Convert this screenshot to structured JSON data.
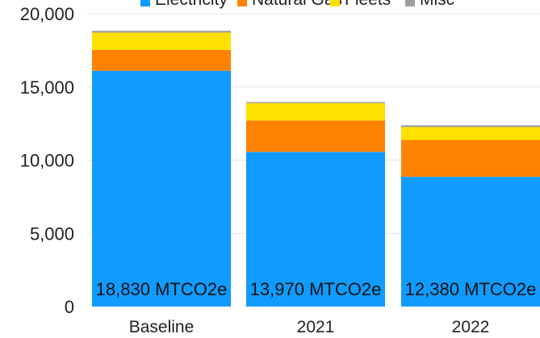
{
  "chart_data": {
    "type": "bar",
    "stacked": true,
    "categories": [
      "Baseline",
      "2021",
      "2022"
    ],
    "series": [
      {
        "name": "Electricity",
        "color": "#0f9bff",
        "values": [
          16100,
          10560,
          8860
        ]
      },
      {
        "name": "Natural Gas",
        "color": "#ff8200",
        "values": [
          1430,
          2150,
          2520
        ]
      },
      {
        "name": "Fleets",
        "color": "#ffe100",
        "values": [
          1180,
          1180,
          880
        ]
      },
      {
        "name": "Misc",
        "color": "#9e9e9e",
        "values": [
          120,
          80,
          120
        ]
      }
    ],
    "totals": [
      "18,830 MTCO2e",
      "13,970 MTCO2e",
      "12,380 MTCO2e"
    ],
    "ylim": [
      0,
      20000
    ],
    "yticks": [
      0,
      5000,
      10000,
      15000,
      20000
    ],
    "ytick_labels": [
      "0",
      "5,000",
      "10,000",
      "15,000",
      "20,000"
    ],
    "grid": true,
    "legend_position": "top"
  }
}
